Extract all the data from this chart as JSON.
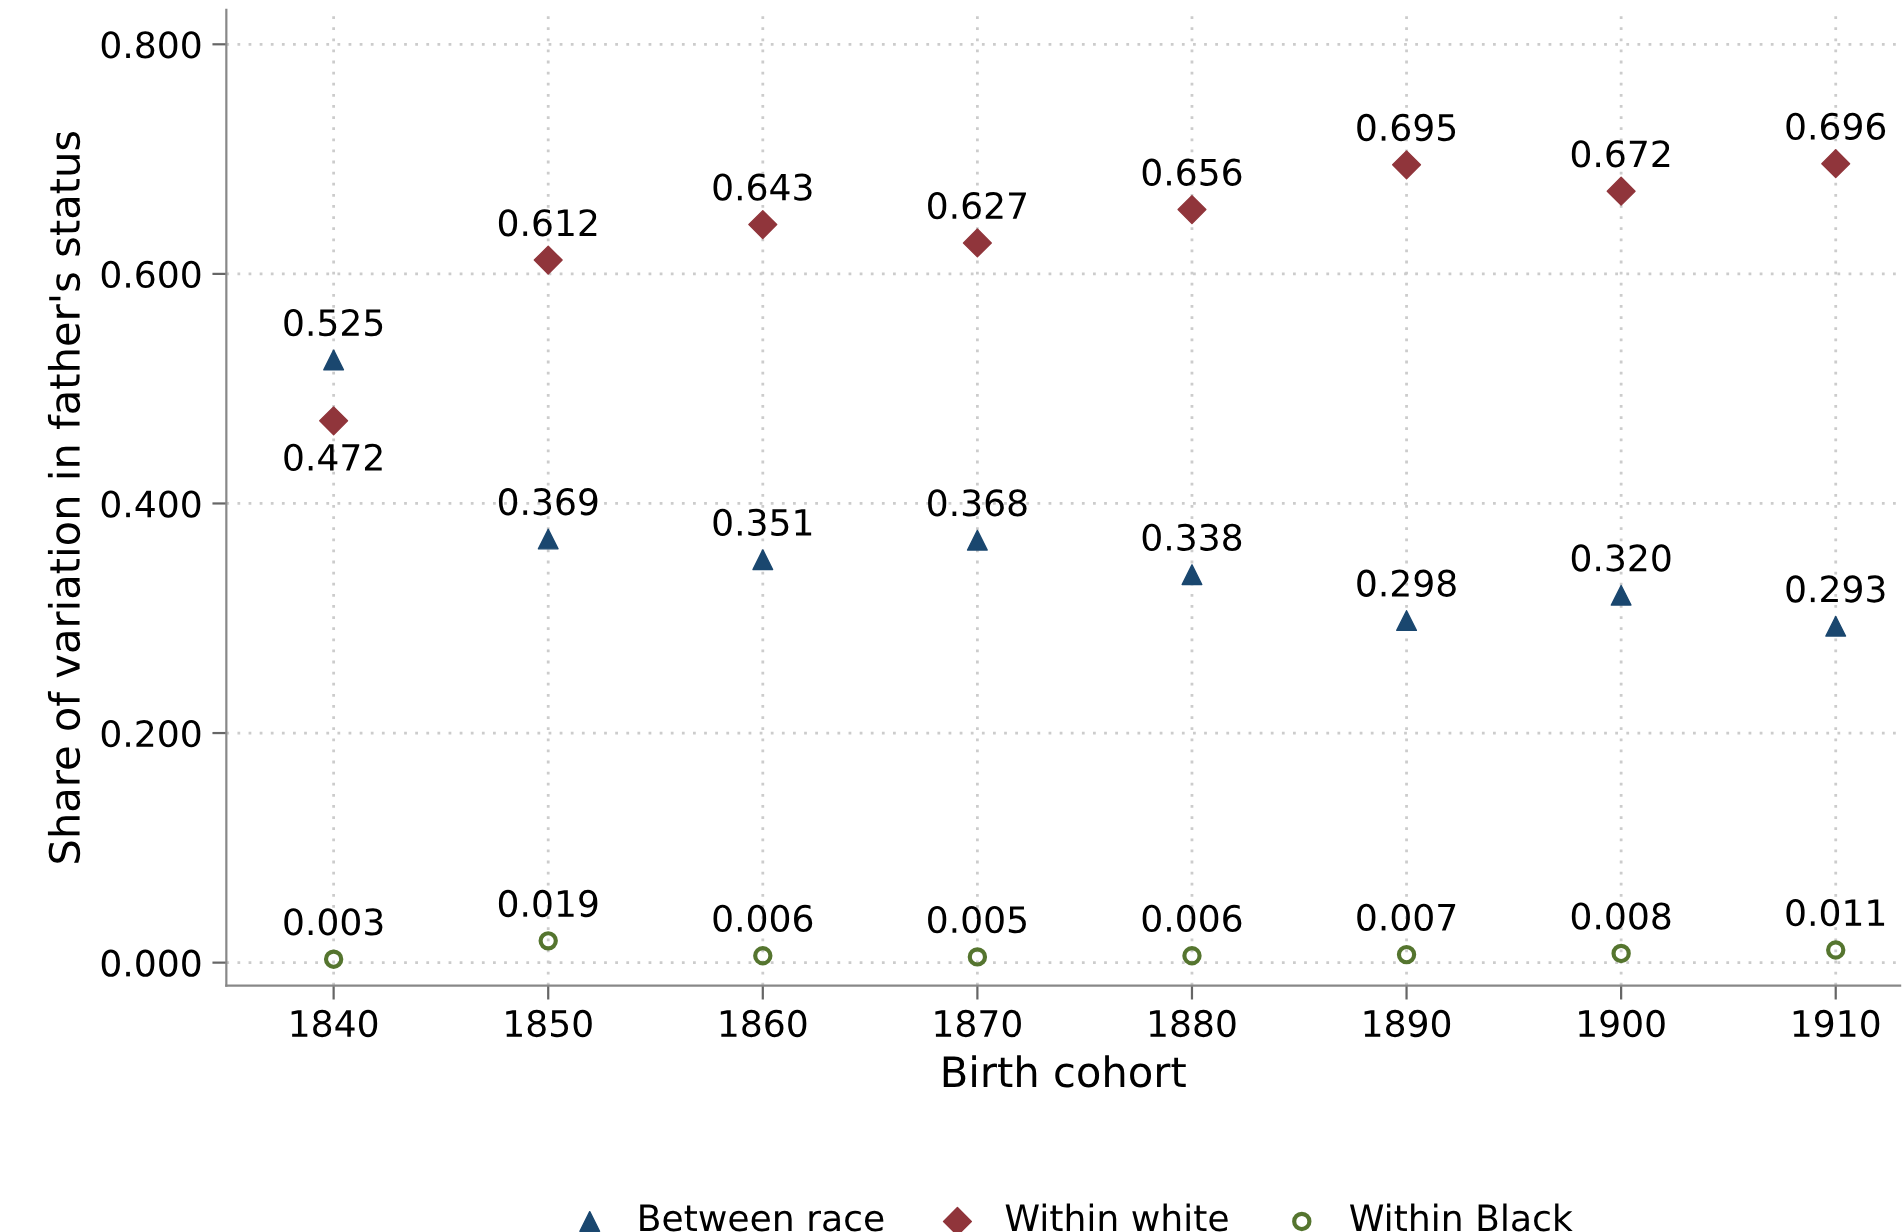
{
  "chart_data": {
    "type": "scatter",
    "xlabel": "Birth cohort",
    "ylabel": "Share of variation in father's status",
    "x": [
      1840,
      1850,
      1860,
      1870,
      1880,
      1890,
      1900,
      1910
    ],
    "series": [
      {
        "name": "Between race",
        "color": "#1a476f",
        "marker": "triangle",
        "values": [
          0.525,
          0.369,
          0.351,
          0.368,
          0.338,
          0.298,
          0.32,
          0.293
        ],
        "value_labels": [
          "0.525",
          "0.369",
          "0.351",
          "0.368",
          "0.338",
          "0.298",
          "0.320",
          "0.293"
        ]
      },
      {
        "name": "Within white",
        "color": "#90353b",
        "marker": "diamond",
        "values": [
          0.472,
          0.612,
          0.643,
          0.627,
          0.656,
          0.695,
          0.672,
          0.696
        ],
        "value_labels": [
          "0.472",
          "0.612",
          "0.643",
          "0.627",
          "0.656",
          "0.695",
          "0.672",
          "0.696"
        ]
      },
      {
        "name": "Within Black",
        "color": "#55752f",
        "marker": "circle",
        "values": [
          0.003,
          0.019,
          0.006,
          0.005,
          0.006,
          0.007,
          0.008,
          0.011
        ],
        "value_labels": [
          "0.003",
          "0.019",
          "0.006",
          "0.005",
          "0.006",
          "0.007",
          "0.008",
          "0.011"
        ]
      }
    ],
    "xlim": [
      1835,
      1913
    ],
    "xticks": [
      1840,
      1850,
      1860,
      1870,
      1880,
      1890,
      1900,
      1910
    ],
    "ylim": [
      -0.02,
      0.83
    ],
    "yticks": [
      {
        "value": 0,
        "label": "0.000"
      },
      {
        "value": 0.2,
        "label": "0.200"
      },
      {
        "value": 0.4,
        "label": "0.400"
      },
      {
        "value": 0.6,
        "label": "0.600"
      },
      {
        "value": 0.8,
        "label": "0.800"
      }
    ],
    "grid": true,
    "legend": "bottom"
  }
}
